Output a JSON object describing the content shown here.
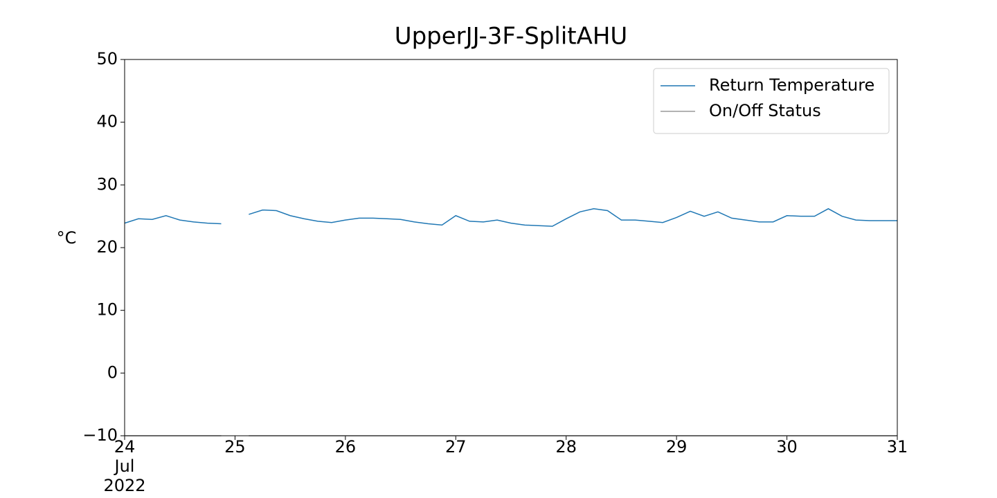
{
  "chart_data": {
    "type": "line",
    "title": "UpperJJ-3F-SplitAHU",
    "ylabel": "°C",
    "x": [
      24,
      24.125,
      24.25,
      24.375,
      24.5,
      24.625,
      24.75,
      24.875,
      25,
      25.125,
      25.25,
      25.375,
      25.5,
      25.625,
      25.75,
      25.875,
      26,
      26.125,
      26.25,
      26.375,
      26.5,
      26.625,
      26.75,
      26.875,
      27,
      27.125,
      27.25,
      27.375,
      27.5,
      27.625,
      27.75,
      27.875,
      28,
      28.125,
      28.25,
      28.375,
      28.5,
      28.625,
      28.75,
      28.875,
      29,
      29.125,
      29.25,
      29.375,
      29.5,
      29.625,
      29.75,
      29.875,
      30,
      30.125,
      30.25,
      30.375,
      30.5,
      30.625,
      30.75,
      30.875,
      31
    ],
    "series": [
      {
        "name": "Return Temperature",
        "color": "#1f77b4",
        "values": [
          23.9,
          24.6,
          24.5,
          25.1,
          24.4,
          24.1,
          23.9,
          23.8,
          null,
          25.3,
          26.0,
          25.9,
          25.1,
          24.6,
          24.2,
          24.0,
          24.4,
          24.7,
          24.7,
          24.6,
          24.5,
          24.1,
          23.8,
          23.6,
          25.1,
          24.2,
          24.1,
          24.4,
          23.9,
          23.6,
          23.5,
          23.4,
          24.6,
          25.7,
          26.2,
          25.9,
          24.4,
          24.4,
          24.2,
          24.0,
          24.8,
          25.8,
          25.0,
          25.7,
          24.7,
          24.4,
          24.1,
          24.1,
          25.1,
          25.0,
          25.0,
          26.2,
          25.0,
          24.4,
          24.3,
          24.3,
          24.3
        ]
      },
      {
        "name": "On/Off Status",
        "color": "#999999",
        "values": [
          -10,
          -10,
          -10,
          -10,
          -10,
          -10,
          -10,
          -10,
          null,
          -10,
          -10,
          -10,
          -10,
          -10,
          -10,
          -10,
          -10,
          -10,
          -10,
          -10,
          -10,
          -10,
          -10,
          -10,
          -10,
          -10,
          -10,
          -10,
          -10,
          -10,
          -10,
          -10,
          -10,
          -10,
          -10,
          -10,
          -10,
          -10,
          -10,
          -10,
          -10,
          -10,
          -10,
          -10,
          -10,
          -10,
          -10,
          -10,
          -10,
          -10,
          -10,
          -10,
          -10,
          -10,
          -10,
          -10,
          -10
        ]
      }
    ],
    "xlim": [
      24,
      31
    ],
    "xticks": [
      {
        "value": 24,
        "label": "24\nJul\n2022"
      },
      25,
      26,
      27,
      28,
      29,
      30,
      31
    ],
    "ylim": [
      -10,
      50
    ],
    "yticks": [
      {
        "value": -10,
        "label": "−10"
      },
      0,
      10,
      20,
      30,
      40,
      50
    ],
    "legend": "upper right"
  }
}
